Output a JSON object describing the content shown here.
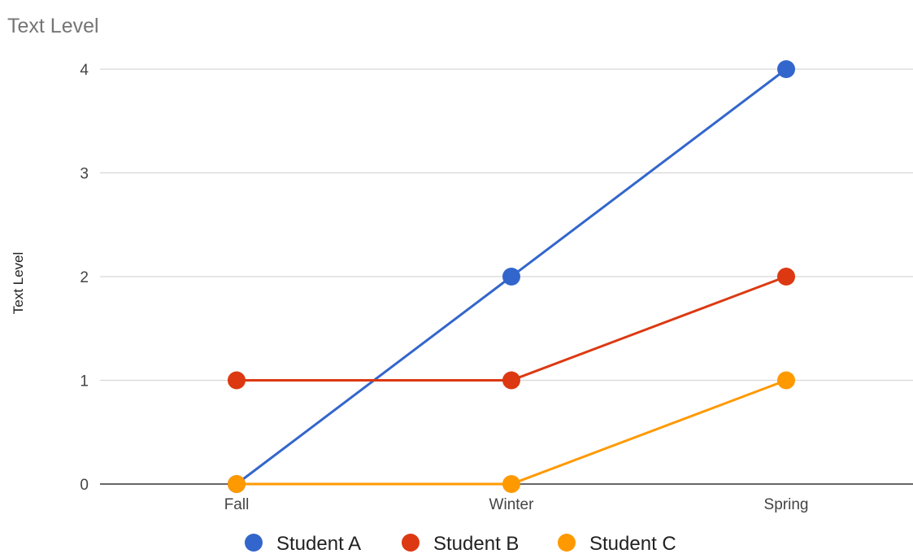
{
  "chart_data": {
    "type": "line",
    "title": "Text Level",
    "xlabel": "",
    "ylabel": "Text Level",
    "categories": [
      "Fall",
      "Winter",
      "Spring"
    ],
    "ylim": [
      0,
      4
    ],
    "yticks": [
      "0",
      "1",
      "2",
      "3",
      "4"
    ],
    "grid": true,
    "legend": "bottom",
    "series": [
      {
        "name": "Student A",
        "color": "#3366cc",
        "values": [
          0,
          2,
          4
        ]
      },
      {
        "name": "Student B",
        "color": "#dc3912",
        "values": [
          1,
          1,
          2
        ]
      },
      {
        "name": "Student C",
        "color": "#ff9900",
        "values": [
          0,
          0,
          1
        ]
      }
    ]
  }
}
